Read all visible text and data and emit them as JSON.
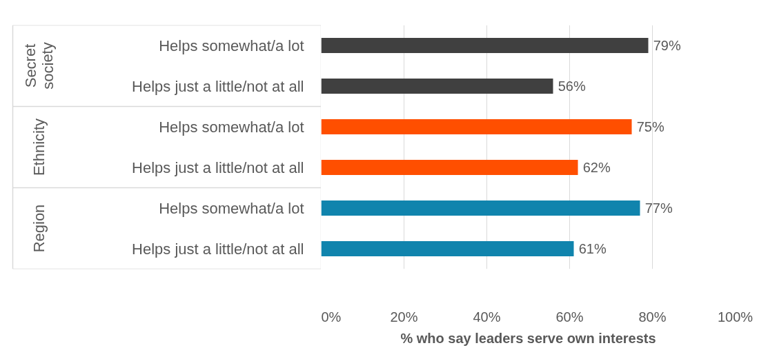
{
  "chart_data": {
    "type": "bar",
    "orientation": "horizontal",
    "categories": [
      "Helps somewhat/a lot",
      "Helps just a little/not at all",
      "Helps somewhat/a lot",
      "Helps just a little/not at all",
      "Helps somewhat/a lot",
      "Helps just a little/not at all"
    ],
    "values": [
      79,
      56,
      75,
      62,
      77,
      61
    ],
    "colors": [
      "#404040",
      "#404040",
      "#ff4f00",
      "#ff4f00",
      "#1084ad",
      "#1084ad"
    ],
    "value_labels": [
      "79%",
      "56%",
      "75%",
      "62%",
      "77%",
      "61%"
    ],
    "xlim": [
      0,
      100
    ],
    "xticks": [
      {
        "value": 0,
        "label": "0%"
      },
      {
        "value": 20,
        "label": "20%"
      },
      {
        "value": 40,
        "label": "40%"
      },
      {
        "value": 60,
        "label": "60%"
      },
      {
        "value": 80,
        "label": "80%"
      },
      {
        "value": 100,
        "label": "100%"
      }
    ],
    "xlabel": "% who say leaders serve own interests",
    "grid": "x",
    "annotations": [
      "Secret society",
      "Ethnicity",
      "Region"
    ]
  }
}
